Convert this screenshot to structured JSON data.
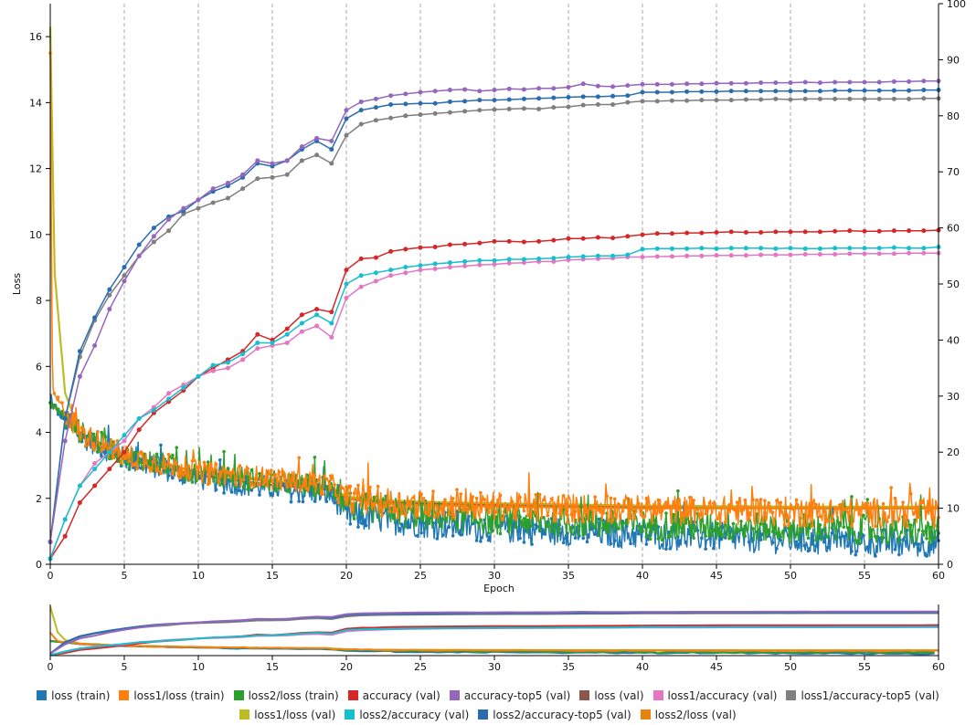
{
  "chart_data": {
    "type": "line",
    "xlabel": "Epoch",
    "ylabel": "Loss",
    "xlim": [
      0,
      60
    ],
    "ylim_left": [
      0,
      17
    ],
    "ylim_right": [
      0,
      100
    ],
    "x_ticks": [
      0,
      5,
      10,
      15,
      20,
      25,
      30,
      35,
      40,
      45,
      50,
      55,
      60
    ],
    "y_ticks_left": [
      0,
      2,
      4,
      6,
      8,
      10,
      12,
      14,
      16
    ],
    "y_ticks_right": [
      0,
      10,
      20,
      30,
      40,
      50,
      60,
      70,
      80,
      90,
      100
    ],
    "series": [
      {
        "name": "loss (train)",
        "color": "#1f77b4",
        "axis": "left",
        "style": "noisy",
        "anchors": [
          [
            0,
            4.9
          ],
          [
            2,
            3.9
          ],
          [
            5,
            3.2
          ],
          [
            10,
            2.6
          ],
          [
            15,
            2.3
          ],
          [
            19,
            2.1
          ],
          [
            20,
            1.5
          ],
          [
            25,
            1.25
          ],
          [
            30,
            1.1
          ],
          [
            40,
            0.9
          ],
          [
            50,
            0.75
          ],
          [
            60,
            0.6
          ]
        ]
      },
      {
        "name": "loss1/loss (train)",
        "color": "#ff7f0e",
        "axis": "left",
        "style": "noisy",
        "anchors": [
          [
            0,
            15.5
          ],
          [
            0.15,
            5.2
          ],
          [
            2,
            4.0
          ],
          [
            5,
            3.3
          ],
          [
            10,
            2.8
          ],
          [
            15,
            2.6
          ],
          [
            19,
            2.4
          ],
          [
            20,
            2.0
          ],
          [
            25,
            1.8
          ],
          [
            30,
            1.75
          ],
          [
            40,
            1.65
          ],
          [
            50,
            1.6
          ],
          [
            60,
            1.55
          ]
        ]
      },
      {
        "name": "loss2/loss (train)",
        "color": "#2ca02c",
        "axis": "left",
        "style": "noisy",
        "anchors": [
          [
            0,
            4.9
          ],
          [
            2,
            4.0
          ],
          [
            5,
            3.3
          ],
          [
            10,
            2.8
          ],
          [
            15,
            2.5
          ],
          [
            19,
            2.3
          ],
          [
            20,
            1.8
          ],
          [
            25,
            1.5
          ],
          [
            30,
            1.35
          ],
          [
            40,
            1.2
          ],
          [
            50,
            1.1
          ],
          [
            60,
            1.0
          ]
        ]
      },
      {
        "name": "accuracy (val)",
        "color": "#d62728",
        "axis": "right",
        "style": "dots",
        "values": [
          1,
          5,
          11,
          14,
          17,
          20,
          24,
          27,
          29,
          31,
          33.5,
          35,
          36.5,
          38,
          41,
          40,
          42,
          44.5,
          45.5,
          45,
          52.5,
          54.5,
          54.7,
          55.8,
          56.2,
          56.5,
          56.6,
          57,
          57.1,
          57.3,
          57.6,
          57.6,
          57.5,
          57.6,
          57.8,
          58.1,
          58.1,
          58.3,
          58.2,
          58.5,
          58.8,
          59,
          59,
          59.1,
          59.1,
          59.2,
          59.3,
          59.2,
          59.2,
          59.3,
          59.3,
          59.3,
          59.3,
          59.4,
          59.5,
          59.4,
          59.4,
          59.5,
          59.5,
          59.5,
          59.6
        ]
      },
      {
        "name": "accuracy-top5 (val)",
        "color": "#9467bd",
        "axis": "right",
        "style": "dots",
        "values": [
          4,
          22,
          33.5,
          39,
          45.5,
          50.5,
          55,
          58.5,
          61.5,
          63.5,
          65,
          67,
          68,
          69.5,
          72,
          71.5,
          72,
          74.5,
          76,
          75.5,
          81,
          82.5,
          83,
          83.6,
          83.9,
          84.2,
          84.4,
          84.6,
          84.7,
          84.4,
          84.6,
          84.8,
          84.7,
          84.9,
          84.9,
          85.1,
          85.7,
          85.3,
          85.2,
          85.4,
          85.6,
          85.6,
          85.6,
          85.7,
          85.7,
          85.8,
          85.8,
          85.8,
          85.9,
          85.9,
          85.9,
          86,
          85.9,
          86,
          86,
          86,
          86,
          86.1,
          86.1,
          86.2,
          86.2
        ]
      },
      {
        "name": "loss (val)",
        "color": "#8c564b",
        "axis": "left",
        "style": "line",
        "anchors": [
          [
            0,
            4.9
          ],
          [
            2,
            3.9
          ],
          [
            5,
            3.2
          ],
          [
            10,
            2.7
          ],
          [
            15,
            2.4
          ],
          [
            19,
            2.25
          ],
          [
            20,
            2.05
          ],
          [
            22,
            1.9
          ],
          [
            25,
            1.85
          ],
          [
            30,
            1.8
          ],
          [
            40,
            1.75
          ],
          [
            50,
            1.7
          ],
          [
            60,
            1.7
          ]
        ]
      },
      {
        "name": "loss1/accuracy (val)",
        "color": "#e377c2",
        "axis": "right",
        "style": "dots",
        "values": [
          1,
          8,
          14,
          18,
          20,
          22,
          26,
          28,
          30.5,
          32,
          33.5,
          34.5,
          35,
          36.5,
          38.5,
          39,
          39.5,
          41.5,
          42.5,
          40.5,
          47.5,
          49.5,
          50.5,
          51.5,
          52,
          52.5,
          52.7,
          53,
          53.2,
          53.4,
          53.5,
          53.7,
          53.8,
          54,
          54,
          54.3,
          54.4,
          54.5,
          54.6,
          54.8,
          54.8,
          54.9,
          54.9,
          55,
          55,
          55.1,
          55.1,
          55.1,
          55.2,
          55.2,
          55.2,
          55.3,
          55.3,
          55.3,
          55.4,
          55.4,
          55.4,
          55.4,
          55.5,
          55.5,
          55.5
        ]
      },
      {
        "name": "loss1/accuracy-top5 (val)",
        "color": "#7f7f7f",
        "axis": "right",
        "style": "dots",
        "values": [
          4,
          26,
          37,
          43.5,
          48,
          51.5,
          55,
          57.5,
          59.5,
          62.5,
          63.5,
          64.5,
          65.3,
          67,
          68.8,
          69,
          69.5,
          72,
          73,
          71.5,
          76.5,
          78.5,
          79.2,
          79.6,
          80,
          80.2,
          80.4,
          80.6,
          80.8,
          81,
          81.1,
          81.2,
          81.3,
          81.2,
          81.5,
          81.6,
          81.9,
          82,
          82,
          82.4,
          82.6,
          82.6,
          82.7,
          82.7,
          82.8,
          82.8,
          82.8,
          82.9,
          82.9,
          83,
          82.9,
          83,
          83,
          83,
          83,
          83,
          83,
          83,
          83,
          83.1,
          83.1
        ]
      },
      {
        "name": "loss1/loss (val)",
        "color": "#bcbd22",
        "axis": "left",
        "style": "line",
        "anchors": [
          [
            0,
            16.3
          ],
          [
            0.3,
            8.8
          ],
          [
            1,
            5.2
          ],
          [
            2,
            4.0
          ],
          [
            5,
            3.3
          ],
          [
            10,
            2.8
          ],
          [
            15,
            2.55
          ],
          [
            19,
            2.35
          ],
          [
            20,
            2.05
          ],
          [
            22,
            1.95
          ],
          [
            25,
            1.9
          ],
          [
            30,
            1.85
          ],
          [
            40,
            1.78
          ],
          [
            50,
            1.75
          ],
          [
            60,
            1.75
          ]
        ]
      },
      {
        "name": "loss2/accuracy (val)",
        "color": "#17becf",
        "axis": "right",
        "style": "dots",
        "values": [
          1,
          8,
          14,
          17,
          20,
          23,
          26,
          27.5,
          29.5,
          31.5,
          33.5,
          35.5,
          36,
          37.5,
          39.5,
          39.5,
          41,
          43,
          44.5,
          43,
          50,
          51.5,
          52,
          52.5,
          53,
          53.3,
          53.6,
          53.8,
          54,
          54.2,
          54.2,
          54.4,
          54.4,
          54.5,
          54.6,
          54.8,
          54.9,
          55,
          55,
          55.2,
          56.2,
          56.3,
          56.3,
          56.3,
          56.4,
          56.3,
          56.4,
          56.4,
          56.4,
          56.3,
          56.4,
          56.3,
          56.3,
          56.4,
          56.4,
          56.4,
          56.4,
          56.5,
          56.4,
          56.4,
          56.6
        ]
      },
      {
        "name": "loss2/accuracy-top5 (val)",
        "color": "#2b6cb0",
        "axis": "right",
        "style": "dots",
        "values": [
          4,
          26,
          38,
          44,
          49,
          53,
          57,
          60,
          62,
          63,
          65,
          66.5,
          67.5,
          69,
          71.5,
          71,
          72,
          74,
          75.5,
          74,
          79.5,
          81,
          81.5,
          82,
          82.1,
          82.2,
          82.2,
          82.5,
          82.6,
          82.8,
          82.8,
          82.9,
          83,
          83.1,
          83.2,
          83.3,
          83.4,
          83.4,
          83.5,
          83.6,
          84.2,
          84.2,
          84.2,
          84.3,
          84.3,
          84.3,
          84.4,
          84.4,
          84.4,
          84.4,
          84.4,
          84.4,
          84.4,
          84.5,
          84.5,
          84.5,
          84.5,
          84.5,
          84.5,
          84.6,
          84.6
        ]
      },
      {
        "name": "loss2/loss (val)",
        "color": "#e8830c",
        "axis": "left",
        "style": "line",
        "anchors": [
          [
            0,
            4.9
          ],
          [
            2,
            4.0
          ],
          [
            5,
            3.3
          ],
          [
            10,
            2.8
          ],
          [
            15,
            2.5
          ],
          [
            19,
            2.3
          ],
          [
            20,
            2.0
          ],
          [
            22,
            1.85
          ],
          [
            25,
            1.8
          ],
          [
            30,
            1.75
          ],
          [
            40,
            1.7
          ],
          [
            50,
            1.7
          ],
          [
            60,
            1.7
          ]
        ]
      }
    ]
  }
}
